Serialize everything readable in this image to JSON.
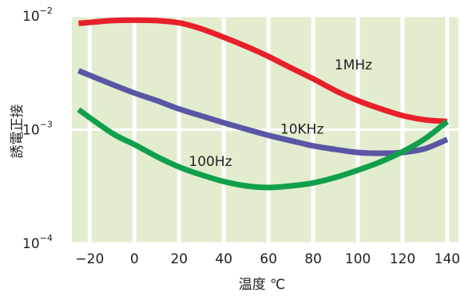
{
  "chart_data": {
    "type": "line",
    "xlabel": "温度 ℃",
    "ylabel": "誘電正接",
    "xlim": [
      -28,
      145
    ],
    "xticks": [
      -20,
      0,
      20,
      40,
      60,
      80,
      100,
      120,
      140
    ],
    "x_tick_labels": [
      "−20",
      "0",
      "20",
      "40",
      "60",
      "80",
      "100",
      "120",
      "140"
    ],
    "y_scale": "log",
    "ylim": [
      0.0001,
      0.01
    ],
    "yticks": [
      0.0001,
      0.001,
      0.01
    ],
    "y_tick_labels": [
      {
        "base": "10",
        "exp": "−4"
      },
      {
        "base": "10",
        "exp": "−3"
      },
      {
        "base": "10",
        "exp": "−2"
      }
    ],
    "grid": true,
    "colors": {
      "plot_background": "#e2edcf",
      "grid": "#ffffff",
      "1MHz": "#e8202a",
      "10KHz": "#5a56a5",
      "100Hz": "#10a04c"
    },
    "series": [
      {
        "name": "1MHz",
        "x": [
          -25,
          -10,
          0,
          10,
          20,
          30,
          40,
          50,
          60,
          70,
          80,
          90,
          100,
          110,
          120,
          130,
          140
        ],
        "y": [
          0.0086,
          0.0091,
          0.0092,
          0.0091,
          0.0087,
          0.0077,
          0.0065,
          0.0054,
          0.0044,
          0.0035,
          0.0028,
          0.0022,
          0.0018,
          0.00153,
          0.00133,
          0.00122,
          0.00118
        ]
      },
      {
        "name": "10KHz",
        "x": [
          -25,
          -10,
          0,
          10,
          20,
          30,
          40,
          50,
          60,
          70,
          80,
          90,
          100,
          110,
          120,
          130,
          140
        ],
        "y": [
          0.0033,
          0.0025,
          0.0021,
          0.0018,
          0.00152,
          0.00132,
          0.00115,
          0.00101,
          0.00089,
          0.0008,
          0.00072,
          0.00067,
          0.00063,
          0.00062,
          0.00063,
          0.00068,
          0.00082
        ]
      },
      {
        "name": "100Hz",
        "x": [
          -25,
          -10,
          0,
          10,
          20,
          30,
          40,
          50,
          60,
          70,
          80,
          90,
          100,
          110,
          120,
          130,
          140
        ],
        "y": [
          0.0015,
          0.00093,
          0.00074,
          0.00058,
          0.00047,
          0.0004,
          0.00035,
          0.00032,
          0.00031,
          0.00032,
          0.00034,
          0.00038,
          0.00044,
          0.00052,
          0.00064,
          0.00083,
          0.00118
        ]
      }
    ],
    "annotations": [
      {
        "series": "1MHz",
        "text": "1MHz",
        "x": 98,
        "y": 0.0034
      },
      {
        "series": "10KHz",
        "text": "10KHz",
        "x": 75,
        "y": 0.00092
      },
      {
        "series": "100Hz",
        "text": "100Hz",
        "x": 34,
        "y": 0.00048
      }
    ]
  }
}
